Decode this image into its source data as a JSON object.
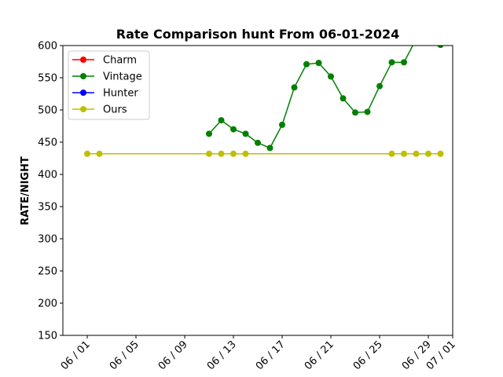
{
  "chart_data": {
    "type": "line",
    "title": "Rate Comparison hunt From 06-01-2024",
    "xlabel": "",
    "ylabel": "RATE/NIGHT",
    "ylim": [
      150,
      600
    ],
    "xlim": [
      "2024-05-30",
      "2024-07-01"
    ],
    "yticks": [
      150,
      200,
      250,
      300,
      350,
      400,
      450,
      500,
      550,
      600
    ],
    "xticks": [
      {
        "date": "2024-06-01",
        "label": "06 / 01"
      },
      {
        "date": "2024-06-05",
        "label": "06 / 05"
      },
      {
        "date": "2024-06-09",
        "label": "06 / 09"
      },
      {
        "date": "2024-06-13",
        "label": "06 / 13"
      },
      {
        "date": "2024-06-17",
        "label": "06 / 17"
      },
      {
        "date": "2024-06-21",
        "label": "06 / 21"
      },
      {
        "date": "2024-06-25",
        "label": "06 / 25"
      },
      {
        "date": "2024-06-29",
        "label": "06 / 29"
      },
      {
        "date": "2024-07-01",
        "label": "07 / 01"
      }
    ],
    "grid": false,
    "legend_position": "top-left",
    "series": [
      {
        "name": "Charm",
        "color": "#ff0000",
        "points": []
      },
      {
        "name": "Vintage",
        "color": "#008000",
        "points": [
          {
            "x": "2024-06-11",
            "y": 463
          },
          {
            "x": "2024-06-12",
            "y": 484
          },
          {
            "x": "2024-06-13",
            "y": 470
          },
          {
            "x": "2024-06-14",
            "y": 463
          },
          {
            "x": "2024-06-15",
            "y": 449
          },
          {
            "x": "2024-06-16",
            "y": 441
          },
          {
            "x": "2024-06-17",
            "y": 477
          },
          {
            "x": "2024-06-18",
            "y": 535
          },
          {
            "x": "2024-06-19",
            "y": 571
          },
          {
            "x": "2024-06-20",
            "y": 573
          },
          {
            "x": "2024-06-21",
            "y": 552
          },
          {
            "x": "2024-06-22",
            "y": 518
          },
          {
            "x": "2024-06-23",
            "y": 496
          },
          {
            "x": "2024-06-24",
            "y": 497
          },
          {
            "x": "2024-06-25",
            "y": 537
          },
          {
            "x": "2024-06-26",
            "y": 574
          },
          {
            "x": "2024-06-27",
            "y": 574
          },
          {
            "x": "2024-06-28",
            "y": 610
          },
          {
            "x": "2024-06-30",
            "y": 601
          }
        ]
      },
      {
        "name": "Hunter",
        "color": "#0000ff",
        "points": []
      },
      {
        "name": "Ours",
        "color": "#bfbf00",
        "points": [
          {
            "x": "2024-06-01",
            "y": 432
          },
          {
            "x": "2024-06-02",
            "y": 432
          },
          {
            "x": "2024-06-11",
            "y": 432
          },
          {
            "x": "2024-06-12",
            "y": 432
          },
          {
            "x": "2024-06-13",
            "y": 432
          },
          {
            "x": "2024-06-14",
            "y": 432
          },
          {
            "x": "2024-06-26",
            "y": 432
          },
          {
            "x": "2024-06-27",
            "y": 432
          },
          {
            "x": "2024-06-28",
            "y": 432
          },
          {
            "x": "2024-06-29",
            "y": 432
          },
          {
            "x": "2024-06-30",
            "y": 432
          }
        ]
      }
    ]
  }
}
